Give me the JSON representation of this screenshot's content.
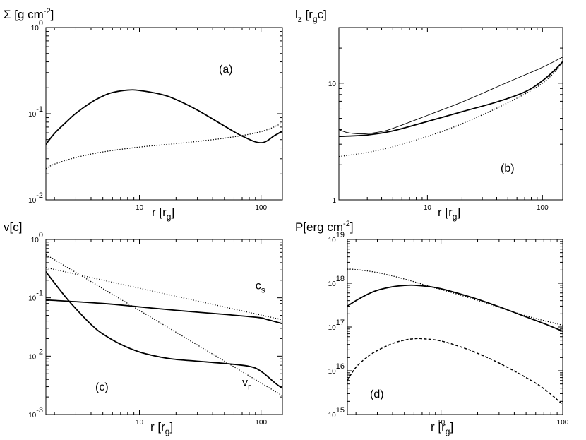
{
  "chart_data": [
    {
      "type": "line",
      "panel": "(a)",
      "title": "Σ [g cm",
      "title_sup": "-2",
      "title_end": "]",
      "xlabel": "r [r",
      "xlabel_sub": "g",
      "xlabel_end": "]",
      "xscale": "log",
      "yscale": "log",
      "xlim": [
        1.7,
        150
      ],
      "ylim": [
        0.01,
        1
      ],
      "xticks": [
        {
          "v": 10,
          "label": "10"
        },
        {
          "v": 100,
          "label": "100"
        }
      ],
      "yticks": [
        {
          "v": 0.01,
          "base": "10",
          "exp": "-2"
        },
        {
          "v": 0.1,
          "base": "10",
          "exp": "-1"
        },
        {
          "v": 1,
          "base": "10",
          "exp": "0"
        }
      ],
      "series": [
        {
          "style": "solid",
          "x": [
            1.7,
            2,
            2.5,
            3,
            4,
            5,
            6,
            8,
            10,
            15,
            20,
            30,
            50,
            70,
            100,
            130,
            150
          ],
          "y": [
            0.044,
            0.059,
            0.08,
            0.101,
            0.135,
            0.16,
            0.176,
            0.188,
            0.186,
            0.168,
            0.146,
            0.11,
            0.072,
            0.055,
            0.046,
            0.056,
            0.063
          ]
        },
        {
          "style": "dotted",
          "x": [
            1.7,
            2,
            3,
            5,
            10,
            20,
            50,
            100,
            150
          ],
          "y": [
            0.023,
            0.026,
            0.031,
            0.036,
            0.041,
            0.045,
            0.052,
            0.062,
            0.078
          ]
        }
      ],
      "annotations": []
    },
    {
      "type": "line",
      "panel": "(b)",
      "title": "l",
      "title_sub": "z",
      "title_mid": " [r",
      "title_sub2": "g",
      "title_end": "c]",
      "xlabel": "r [r",
      "xlabel_sub": "g",
      "xlabel_end": "]",
      "xscale": "log",
      "yscale": "log",
      "xlim": [
        1.7,
        150
      ],
      "ylim": [
        1,
        30
      ],
      "xticks": [
        {
          "v": 10,
          "label": "10"
        },
        {
          "v": 100,
          "label": "100"
        }
      ],
      "yticks": [
        {
          "v": 1,
          "label": "1"
        },
        {
          "v": 10,
          "label": "10"
        }
      ],
      "series": [
        {
          "style": "thin",
          "x": [
            1.7,
            2,
            2.5,
            3,
            4,
            5,
            10,
            20,
            50,
            100,
            150
          ],
          "y": [
            4.0,
            3.78,
            3.68,
            3.7,
            3.85,
            4.1,
            5.3,
            6.9,
            10.2,
            13.7,
            16.8
          ]
        },
        {
          "style": "solid",
          "x": [
            1.7,
            2,
            3,
            5,
            10,
            20,
            40,
            70,
            100,
            130,
            150
          ],
          "y": [
            3.5,
            3.52,
            3.6,
            3.9,
            4.7,
            5.7,
            6.9,
            8.4,
            10.5,
            13.2,
            15.3
          ]
        },
        {
          "style": "dotted",
          "x": [
            1.7,
            2,
            3,
            5,
            10,
            20,
            50,
            100,
            150
          ],
          "y": [
            2.35,
            2.4,
            2.55,
            2.85,
            3.5,
            4.5,
            6.8,
            10.0,
            15.0
          ]
        }
      ],
      "annotations": []
    },
    {
      "type": "line",
      "panel": "(c)",
      "title": "v[c]",
      "xlabel": "r [r",
      "xlabel_sub": "g",
      "xlabel_end": "]",
      "xscale": "log",
      "yscale": "log",
      "xlim": [
        1.7,
        150
      ],
      "ylim": [
        0.001,
        1
      ],
      "xticks": [
        {
          "v": 10,
          "label": "10"
        },
        {
          "v": 100,
          "label": "100"
        }
      ],
      "yticks": [
        {
          "v": 0.001,
          "base": "10",
          "exp": "-3"
        },
        {
          "v": 0.01,
          "base": "10",
          "exp": "-2"
        },
        {
          "v": 0.1,
          "base": "10",
          "exp": "-1"
        },
        {
          "v": 1,
          "base": "10",
          "exp": "0"
        }
      ],
      "series": [
        {
          "style": "solid",
          "x": [
            1.7,
            5,
            10,
            20,
            50,
            95,
            110,
            150
          ],
          "y": [
            0.092,
            0.08,
            0.07,
            0.061,
            0.052,
            0.046,
            0.043,
            0.036
          ]
        },
        {
          "style": "solid",
          "x": [
            1.7,
            2,
            2.5,
            3,
            4,
            5,
            7,
            10,
            15,
            20,
            30,
            50,
            80,
            100,
            130,
            150
          ],
          "y": [
            0.28,
            0.18,
            0.1,
            0.065,
            0.035,
            0.024,
            0.016,
            0.0118,
            0.0096,
            0.0088,
            0.0082,
            0.0075,
            0.0067,
            0.0055,
            0.0035,
            0.0028
          ]
        },
        {
          "style": "dotted",
          "x": [
            1.7,
            150
          ],
          "y": [
            0.33,
            0.042
          ]
        },
        {
          "style": "dotted",
          "x": [
            1.7,
            150
          ],
          "y": [
            0.55,
            0.0021
          ]
        }
      ],
      "annotations": [
        {
          "text": "c",
          "sub": "s",
          "x": 90,
          "y": 0.14
        },
        {
          "text": "v",
          "sub": "r",
          "x": 70,
          "y": 0.0031
        }
      ]
    },
    {
      "type": "line",
      "panel": "(d)",
      "title": "P[erg cm",
      "title_sup": "-2",
      "title_end": "]",
      "xlabel": "r [r",
      "xlabel_sub": "g",
      "xlabel_end": "]",
      "xscale": "log",
      "yscale": "log",
      "xlim": [
        1.7,
        100
      ],
      "ylim": [
        1000000000000000.0,
        1e+19
      ],
      "xticks": [
        {
          "v": 10,
          "label": "10"
        },
        {
          "v": 100,
          "label": "100"
        }
      ],
      "yticks": [
        {
          "v": 1000000000000000.0,
          "base": "10",
          "exp": "15"
        },
        {
          "v": 1e+16,
          "base": "10",
          "exp": "16"
        },
        {
          "v": 1e+17,
          "base": "10",
          "exp": "17"
        },
        {
          "v": 1e+18,
          "base": "10",
          "exp": "18"
        },
        {
          "v": 1e+19,
          "base": "10",
          "exp": "19"
        }
      ],
      "series": [
        {
          "style": "dotted",
          "x": [
            1.7,
            2,
            3,
            5,
            8,
            10,
            15,
            20,
            30,
            50,
            70,
            100
          ],
          "y": [
            2.1e+18,
            2.05e+18,
            1.75e+18,
            1.25e+18,
            8.5e+17,
            7.2e+17,
            5.2e+17,
            4e+17,
            2.8e+17,
            1.8e+17,
            1.4e+17,
            1.1e+17
          ]
        },
        {
          "style": "solid",
          "x": [
            1.7,
            2,
            2.5,
            3,
            4,
            5,
            6,
            8,
            10,
            15,
            20,
            30,
            50,
            70,
            100
          ],
          "y": [
            3e+17,
            4e+17,
            5.6e+17,
            6.9e+17,
            8.3e+17,
            8.9e+17,
            9e+17,
            8.4e+17,
            7.5e+17,
            5.5e+17,
            4.3e+17,
            2.9e+17,
            1.7e+17,
            1.2e+17,
            8e+16
          ]
        },
        {
          "style": "dashed",
          "x": [
            1.7,
            2,
            2.5,
            3,
            4,
            5,
            6,
            7,
            10,
            15,
            20,
            30,
            50,
            70,
            100
          ],
          "y": [
            6000000000000000.0,
            1.2e+16,
            2.1e+16,
            2.9e+16,
            4.2e+16,
            5e+16,
            5.4e+16,
            5.4e+16,
            4.8e+16,
            3.4e+16,
            2.5e+16,
            1.5e+16,
            7000000000000000.0,
            3900000000000000.0,
            1700000000000000.0
          ]
        }
      ],
      "annotations": []
    }
  ]
}
